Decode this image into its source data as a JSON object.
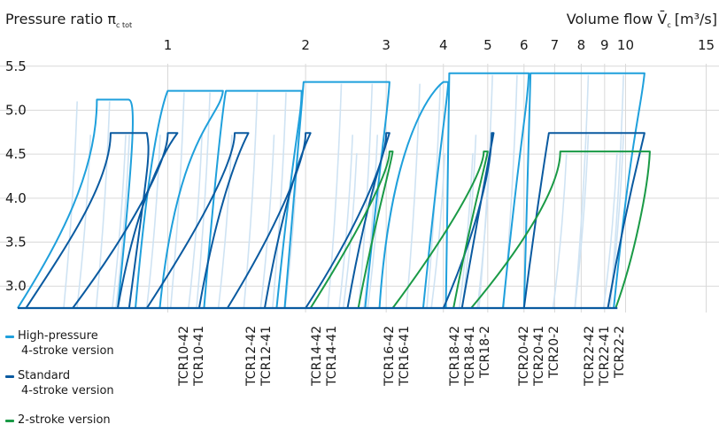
{
  "chart_data": {
    "type": "line",
    "title": "",
    "ylabel": "Pressure ratio π",
    "ylabel_sub": "c tot",
    "xlabel": "Volume flow V̄",
    "xlabel_sub": "c",
    "xlabel_unit": "[m³/s]",
    "x_scale": "log",
    "x_ticks": [
      1,
      2,
      3,
      4,
      5,
      6,
      7,
      8,
      9,
      10,
      15
    ],
    "y_ticks": [
      3.0,
      3.5,
      4.0,
      4.5,
      5.0,
      5.5
    ],
    "ylim": [
      2.7,
      5.9
    ],
    "xlim": [
      0.43,
      16
    ],
    "grid": true,
    "legend_position": "bottom-left",
    "legend": [
      {
        "label": "High-pressure\n4-stroke version",
        "color": "#1fa0dc"
      },
      {
        "label": "Standard\n4-stroke version",
        "color": "#0a5aa0"
      },
      {
        "label": "2-stroke version",
        "color": "#1a9a46"
      }
    ],
    "series": [
      {
        "name": "High-pressure 4-stroke version",
        "color": "#1fa0dc",
        "maps": [
          {
            "name": "TCR10-42",
            "x": [
              0.47,
              0.58,
              0.7,
              0.82,
              0.85,
              0.85
            ],
            "y": [
              2.75,
              3.5,
              4.3,
              5.12,
              5.12,
              4.74
            ]
          },
          {
            "name": "TCR12-42",
            "x": [
              0.85,
              0.92,
              1.0,
              1.32,
              1.3,
              1.05
            ],
            "y": [
              4.74,
              4.85,
              5.22,
              5.22,
              4.9,
              4.74
            ]
          },
          {
            "name": "TCR14-42",
            "x": [
              1.2,
              1.3,
              1.34,
              1.96,
              1.96,
              1.89
            ],
            "y": [
              4.74,
              4.9,
              5.22,
              5.22,
              4.9,
              4.74
            ]
          },
          {
            "name": "TCR16-42",
            "x": [
              1.8,
              1.95,
              1.98,
              3.05,
              3.02,
              2.95
            ],
            "y": [
              4.74,
              4.9,
              5.32,
              5.32,
              4.95,
              4.74
            ]
          },
          {
            "name": "TCR18-42",
            "x": [
              2.9,
              3.1,
              4.0,
              4.1,
              4.05,
              3.95
            ],
            "y": [
              4.74,
              4.95,
              5.32,
              5.32,
              4.95,
              4.74
            ]
          },
          {
            "name": "TCR20-42",
            "x": [
              4.05,
              4.1,
              4.12,
              6.15,
              6.08,
              5.9
            ],
            "y": [
              4.53,
              4.9,
              5.42,
              5.42,
              4.95,
              4.74
            ]
          },
          {
            "name": "TCR22-42",
            "x": [
              6.0,
              6.15,
              6.2,
              11.0,
              10.8,
              10.3
            ],
            "y": [
              4.53,
              4.9,
              5.42,
              5.42,
              5.0,
              4.74
            ]
          }
        ]
      },
      {
        "name": "Standard 4-stroke version",
        "color": "#0a5aa0",
        "maps": [
          {
            "name": "TCR10-41",
            "x": [
              0.49,
              0.61,
              0.75,
              0.9,
              0.92,
              0.9
            ],
            "y": [
              2.75,
              3.5,
              4.2,
              4.74,
              4.5,
              4.3
            ]
          },
          {
            "name": "TCR12-41",
            "x": [
              0.62,
              0.82,
              1.0,
              1.05,
              0.97,
              0.85
            ],
            "y": [
              2.75,
              3.6,
              4.4,
              4.74,
              4.5,
              3.9
            ]
          },
          {
            "name": "TCR14-41",
            "x": [
              0.9,
              1.15,
              1.4,
              1.5,
              1.42,
              1.28
            ],
            "y": [
              2.75,
              3.6,
              4.4,
              4.74,
              4.5,
              3.9
            ]
          },
          {
            "name": "TCR16-41",
            "x": [
              1.35,
              1.7,
              2.0,
              2.05,
              1.95,
              1.78
            ],
            "y": [
              2.75,
              3.6,
              4.4,
              4.74,
              4.5,
              3.9
            ]
          },
          {
            "name": "TCR18-41",
            "x": [
              2.0,
              2.55,
              3.0,
              3.05,
              2.95,
              2.7
            ],
            "y": [
              2.75,
              3.6,
              4.4,
              4.74,
              4.5,
              3.9
            ]
          },
          {
            "name": "TCR20-41",
            "x": [
              4.0,
              4.8,
              5.1,
              5.15,
              5.05,
              4.8
            ],
            "y": [
              2.75,
              3.7,
              4.4,
              4.74,
              4.5,
              3.9
            ]
          },
          {
            "name": "TCR22-41",
            "x": [
              6.0,
              6.4,
              6.8,
              11.0,
              10.8,
              10.0
            ],
            "y": [
              2.75,
              3.9,
              4.74,
              4.74,
              4.55,
              3.9
            ]
          }
        ]
      },
      {
        "name": "2-stroke version",
        "color": "#1a9a46",
        "maps": [
          {
            "name": "TCR18-2",
            "x": [
              2.05,
              2.6,
              3.05,
              3.1,
              3.05,
              2.85
            ],
            "y": [
              2.75,
              3.6,
              4.3,
              4.53,
              4.3,
              3.8
            ]
          },
          {
            "name": "TCR20-2",
            "x": [
              3.1,
              4.1,
              4.9,
              5.0,
              4.9,
              4.6
            ],
            "y": [
              2.75,
              3.6,
              4.3,
              4.53,
              4.3,
              3.8
            ]
          },
          {
            "name": "TCR22-2",
            "x": [
              4.6,
              6.3,
              7.2,
              11.3,
              11.2,
              10.4
            ],
            "y": [
              2.75,
              3.6,
              4.2,
              4.53,
              4.1,
              3.3
            ]
          }
        ]
      }
    ],
    "model_labels": [
      {
        "text": "TCR10-42",
        "group": "High-pressure 4-stroke version"
      },
      {
        "text": "TCR10-41",
        "group": "Standard 4-stroke version"
      },
      {
        "text": "TCR12-42",
        "group": "High-pressure 4-stroke version"
      },
      {
        "text": "TCR12-41",
        "group": "Standard 4-stroke version"
      },
      {
        "text": "TCR14-42",
        "group": "High-pressure 4-stroke version"
      },
      {
        "text": "TCR14-41",
        "group": "Standard 4-stroke version"
      },
      {
        "text": "TCR16-42",
        "group": "High-pressure 4-stroke version"
      },
      {
        "text": "TCR16-41",
        "group": "Standard 4-stroke version"
      },
      {
        "text": "TCR18-42",
        "group": "High-pressure 4-stroke version"
      },
      {
        "text": "TCR18-41",
        "group": "Standard 4-stroke version"
      },
      {
        "text": "TCR18-2",
        "group": "2-stroke version"
      },
      {
        "text": "TCR20-42",
        "group": "High-pressure 4-stroke version"
      },
      {
        "text": "TCR20-41",
        "group": "Standard 4-stroke version"
      },
      {
        "text": "TCR20-2",
        "group": "2-stroke version"
      },
      {
        "text": "TCR22-42",
        "group": "High-pressure 4-stroke version"
      },
      {
        "text": "TCR22-41",
        "group": "Standard 4-stroke version"
      },
      {
        "text": "TCR22-2",
        "group": "2-stroke version"
      }
    ]
  }
}
